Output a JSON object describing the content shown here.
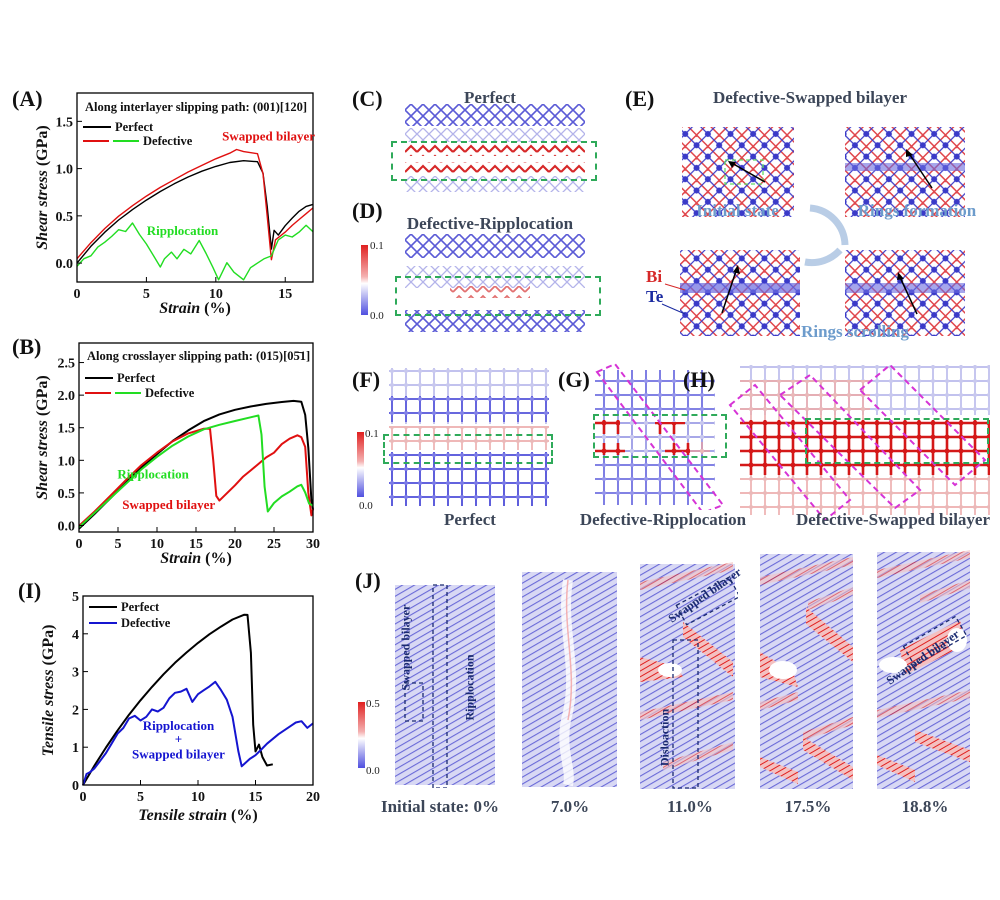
{
  "panels": {
    "A": {
      "label": "(A)"
    },
    "B": {
      "label": "(B)"
    },
    "C": {
      "label": "(C)",
      "title": "Perfect"
    },
    "D": {
      "label": "(D)",
      "title": "Defective-Ripplocation",
      "colorbar": {
        "max": "0.1",
        "min": "0.0"
      }
    },
    "E": {
      "label": "(E)",
      "title": "Defective-Swapped bilayer",
      "states": [
        "Initial state",
        "Rings formation",
        "Rings scrolling"
      ],
      "atoms": {
        "bi": "Bi",
        "te": "Te"
      },
      "colors": {
        "bi": "#e0474c",
        "te": "#3a3ac8"
      }
    },
    "F": {
      "label": "(F)",
      "caption": "Perfect",
      "colorbar": {
        "max": "0.1",
        "min": "0.0"
      }
    },
    "G": {
      "label": "(G)",
      "caption": "Defective-Ripplocation"
    },
    "H": {
      "label": "(H)",
      "caption": "Defective-Swapped bilayer"
    },
    "I": {
      "label": "(I)"
    },
    "J": {
      "label": "(J)",
      "colorbar": {
        "max": "0.5",
        "min": "0.0"
      },
      "frames": [
        {
          "caption": "Initial state: 0%",
          "annotations": [
            "Swapped bilayer",
            "Ripplocation"
          ]
        },
        {
          "caption": "7.0%",
          "annotations": []
        },
        {
          "caption": "11.0%",
          "annotations": [
            "Swapped bilayer",
            "Disloaction"
          ]
        },
        {
          "caption": "17.5%",
          "annotations": []
        },
        {
          "caption": "18.8%",
          "annotations": [
            "Swapped bilayer"
          ]
        }
      ]
    }
  },
  "chart_data": [
    {
      "id": "A",
      "type": "line",
      "title": "Along interlayer slipping path: (001)[120]",
      "xlabel": "Strain (%)",
      "ylabel": "Shear stress (GPa)",
      "xlim": [
        0,
        17
      ],
      "ylim": [
        -0.2,
        1.8
      ],
      "xticks": [
        0,
        5,
        10,
        15
      ],
      "yticks": [
        0.0,
        0.5,
        1.0,
        1.5
      ],
      "ytick_labels": [
        "0.0",
        "0.5",
        "1.0",
        "1.5"
      ],
      "legend": {
        "position": "top-left",
        "entries": [
          {
            "label": "Perfect",
            "colors": [
              "#000000"
            ]
          },
          {
            "label": "Defective",
            "colors": [
              "#e01010",
              "#22dd22"
            ]
          }
        ]
      },
      "annotations": [
        {
          "text": "Swapped bilayer",
          "color": "#e01010",
          "x": 13.8,
          "y": 1.3
        },
        {
          "text": "Ripplocation",
          "color": "#22dd22",
          "x": 7.6,
          "y": 0.3
        }
      ],
      "series": [
        {
          "name": "Perfect",
          "color": "#000000",
          "x": [
            0,
            1,
            2,
            3,
            4,
            5,
            6,
            7,
            8,
            9,
            10,
            11,
            12,
            13,
            13.4,
            13.7,
            14.0,
            14.2,
            14.5,
            15,
            15.5,
            16,
            16.5,
            17
          ],
          "y": [
            0.0,
            0.18,
            0.33,
            0.46,
            0.57,
            0.67,
            0.76,
            0.84,
            0.91,
            0.97,
            1.02,
            1.06,
            1.08,
            1.07,
            0.95,
            0.6,
            0.15,
            0.35,
            0.3,
            0.4,
            0.48,
            0.55,
            0.6,
            0.62
          ]
        },
        {
          "name": "Defective (Swapped bilayer)",
          "color": "#e01010",
          "x": [
            0,
            1,
            2,
            3,
            4,
            5,
            6,
            7,
            8,
            9,
            10,
            11,
            11.5,
            12,
            13,
            13.4,
            13.7,
            14.0,
            14.3,
            15,
            15.5,
            16,
            16.5,
            17
          ],
          "y": [
            0.05,
            0.22,
            0.37,
            0.5,
            0.61,
            0.71,
            0.8,
            0.88,
            0.96,
            1.03,
            1.1,
            1.16,
            1.2,
            1.18,
            1.16,
            0.95,
            0.5,
            0.04,
            0.25,
            0.33,
            0.4,
            0.46,
            0.52,
            0.58
          ]
        },
        {
          "name": "Defective (Ripplocation)",
          "color": "#22dd22",
          "x": [
            0,
            0.5,
            1,
            1.5,
            2,
            2.5,
            3,
            3.5,
            4,
            4.5,
            5,
            5.5,
            6,
            6.3,
            6.8,
            7.2,
            7.7,
            8.2,
            8.8,
            9.3,
            9.8,
            10.2,
            10.8,
            11.3,
            12,
            12.5,
            13,
            13.5,
            14,
            14.5,
            15,
            15.5,
            16,
            16.5,
            17
          ],
          "y": [
            -0.03,
            0.05,
            0.08,
            0.17,
            0.22,
            0.28,
            0.35,
            0.33,
            0.42,
            0.3,
            0.2,
            0.08,
            -0.04,
            0.05,
            0.12,
            0.05,
            0.15,
            0.1,
            0.24,
            0.1,
            -0.05,
            -0.18,
            0.0,
            -0.1,
            -0.18,
            -0.05,
            0.0,
            0.05,
            0.08,
            0.25,
            0.3,
            0.28,
            0.33,
            0.4,
            0.33
          ]
        }
      ]
    },
    {
      "id": "B",
      "type": "line",
      "title": "Along crosslayer slipping path: (015)[0̅¯51]",
      "title_display": "Along crosslayer slipping path: (015)[05̄1]",
      "xlabel": "Strain (%)",
      "ylabel": "Shear stress (GPa)",
      "xlim": [
        0,
        30
      ],
      "ylim": [
        -0.1,
        2.8
      ],
      "xticks": [
        0,
        5,
        10,
        15,
        20,
        25,
        30
      ],
      "yticks": [
        0.0,
        0.5,
        1.0,
        1.5,
        2.0,
        2.5
      ],
      "ytick_labels": [
        "0.0",
        "0.5",
        "1.0",
        "1.5",
        "2.0",
        "2.5"
      ],
      "legend": {
        "position": "top-left",
        "entries": [
          {
            "label": "Perfect",
            "colors": [
              "#000000"
            ]
          },
          {
            "label": "Defective",
            "colors": [
              "#e01010",
              "#22dd22"
            ]
          }
        ]
      },
      "annotations": [
        {
          "text": "Ripplocation",
          "color": "#22dd22",
          "x": 9.5,
          "y": 0.72
        },
        {
          "text": "Swapped bilayer",
          "color": "#e01010",
          "x": 11.5,
          "y": 0.25
        }
      ],
      "series": [
        {
          "name": "Perfect",
          "color": "#000000",
          "x": [
            0,
            2,
            4,
            6,
            8,
            10,
            12,
            14,
            16,
            18,
            20,
            22,
            24,
            26,
            27.5,
            28.5,
            29,
            29.4,
            29.8,
            30
          ],
          "y": [
            -0.05,
            0.18,
            0.42,
            0.66,
            0.9,
            1.1,
            1.3,
            1.46,
            1.6,
            1.7,
            1.77,
            1.82,
            1.86,
            1.89,
            1.91,
            1.9,
            1.7,
            1.2,
            0.4,
            0.25
          ]
        },
        {
          "name": "Defective (Swapped bilayer)",
          "color": "#e01010",
          "x": [
            0,
            2,
            4,
            6,
            8,
            10,
            12,
            14,
            16,
            16.8,
            17.2,
            17.6,
            18,
            19,
            20,
            21,
            22,
            23,
            24,
            25,
            26,
            27,
            28,
            28.5,
            29,
            29.4,
            29.8,
            30
          ],
          "y": [
            0,
            0.22,
            0.46,
            0.7,
            0.93,
            1.12,
            1.29,
            1.41,
            1.48,
            1.48,
            1.0,
            0.45,
            0.38,
            0.5,
            0.62,
            0.75,
            0.85,
            0.95,
            1.05,
            1.12,
            1.25,
            1.33,
            1.38,
            1.35,
            1.2,
            0.5,
            0.15,
            0.25
          ]
        },
        {
          "name": "Defective (Ripplocation)",
          "color": "#22dd22",
          "x": [
            0,
            2,
            4,
            6,
            8,
            10,
            12,
            14,
            16,
            18,
            20,
            22,
            23,
            23.4,
            23.8,
            24.2,
            25,
            26,
            27,
            28,
            28.5,
            29,
            29.5,
            30
          ],
          "y": [
            -0.02,
            0.2,
            0.42,
            0.64,
            0.86,
            1.05,
            1.22,
            1.36,
            1.47,
            1.54,
            1.6,
            1.66,
            1.69,
            1.4,
            0.6,
            0.22,
            0.35,
            0.45,
            0.52,
            0.6,
            0.62,
            0.5,
            0.33,
            0.3
          ]
        }
      ]
    },
    {
      "id": "I",
      "type": "line",
      "title": "",
      "xlabel": "Tensile strain (%)",
      "ylabel": "Tensile stress (GPa)",
      "xlim": [
        0,
        20
      ],
      "ylim": [
        0,
        5
      ],
      "xticks": [
        0,
        5,
        10,
        15,
        20
      ],
      "yticks": [
        0,
        1,
        2,
        3,
        4,
        5
      ],
      "ytick_labels": [
        "0",
        "1",
        "2",
        "3",
        "4",
        "5"
      ],
      "legend": {
        "position": "top-left",
        "entries": [
          {
            "label": "Perfect",
            "colors": [
              "#000000"
            ]
          },
          {
            "label": "Defective",
            "colors": [
              "#1515d0"
            ]
          }
        ]
      },
      "annotations": [
        {
          "text": "Ripplocation",
          "color": "#1515d0",
          "x": 8.3,
          "y": 1.45
        },
        {
          "text": "+",
          "color": "#1515d0",
          "x": 8.3,
          "y": 1.1
        },
        {
          "text": "Swapped bilayer",
          "color": "#1515d0",
          "x": 8.3,
          "y": 0.7
        }
      ],
      "series": [
        {
          "name": "Perfect",
          "color": "#000000",
          "x": [
            0,
            1,
            2,
            3,
            4,
            5,
            6,
            7,
            8,
            9,
            10,
            11,
            12,
            13,
            14,
            14.3,
            14.6,
            14.8,
            15.0,
            15.3,
            15.6,
            16,
            16.5
          ],
          "y": [
            0,
            0.52,
            1.0,
            1.45,
            1.87,
            2.25,
            2.6,
            2.93,
            3.23,
            3.5,
            3.75,
            3.98,
            4.18,
            4.37,
            4.5,
            4.5,
            3.5,
            1.6,
            0.9,
            1.08,
            0.75,
            0.52,
            0.55
          ]
        },
        {
          "name": "Defective",
          "color": "#1515d0",
          "x": [
            0,
            0.3,
            0.6,
            1,
            1.5,
            2,
            2.5,
            3,
            3.5,
            4,
            4.5,
            5,
            5.5,
            6,
            6.5,
            7,
            7.5,
            8,
            8.5,
            9,
            9.5,
            10,
            10.5,
            11,
            11.5,
            12,
            12.5,
            13,
            13.5,
            13.8,
            14.5,
            15,
            15.5,
            16,
            17,
            18,
            18.5,
            19,
            19.5,
            20
          ],
          "y": [
            0,
            0.3,
            0.35,
            0.45,
            0.65,
            0.85,
            1.1,
            1.35,
            1.5,
            1.75,
            1.82,
            1.7,
            1.8,
            2.0,
            1.95,
            2.05,
            2.3,
            2.45,
            2.48,
            2.55,
            2.2,
            2.4,
            2.5,
            2.6,
            2.72,
            2.5,
            2.25,
            1.8,
            0.9,
            0.5,
            0.7,
            0.8,
            0.95,
            1.1,
            1.35,
            1.55,
            1.65,
            1.68,
            1.5,
            1.62
          ]
        }
      ]
    }
  ]
}
